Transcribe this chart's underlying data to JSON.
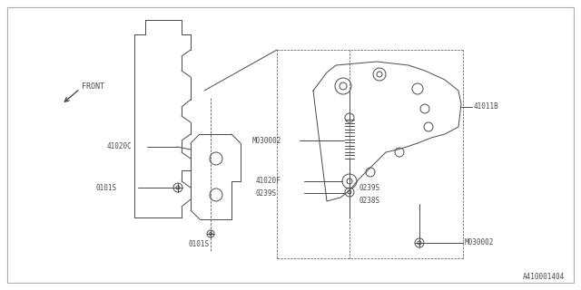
{
  "bg_color": "#ffffff",
  "border_color": "#aaaaaa",
  "line_color": "#4a4a4a",
  "text_color": "#4a4a4a",
  "fig_width": 6.4,
  "fig_height": 3.2,
  "dpi": 100,
  "diagram_number": "A410001404",
  "labels": {
    "front": "FRONT",
    "41011B": "41011B",
    "41020C": "41020C",
    "41020F": "41020F",
    "M030002_1": "M030002",
    "M030002_2": "M030002",
    "0101S_1": "0101S",
    "0101S_2": "0101S",
    "0239S_1": "0239S",
    "0239S_2": "0239S",
    "0238S": "0238S"
  }
}
